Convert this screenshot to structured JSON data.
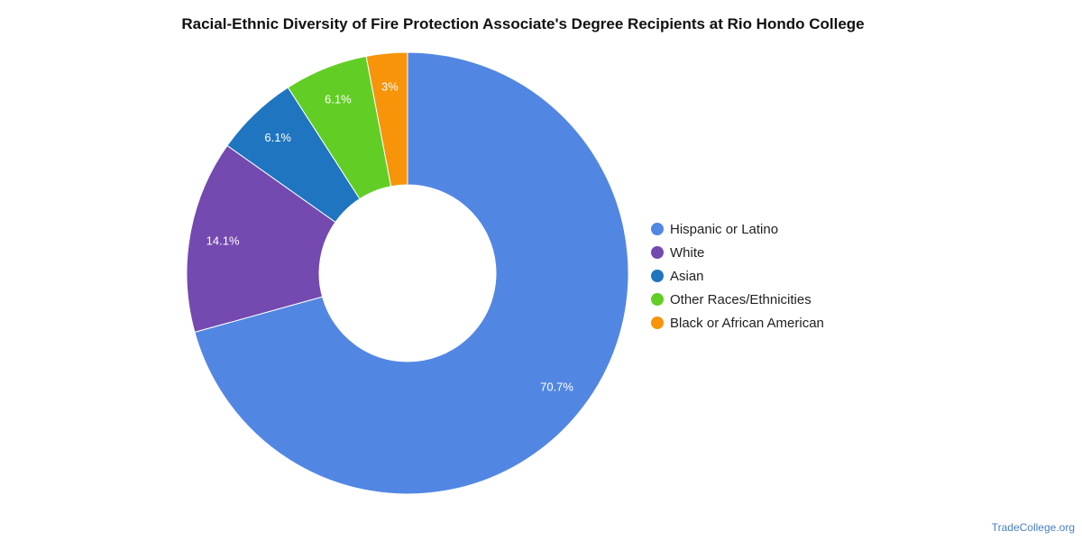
{
  "chart_data": {
    "type": "pie",
    "donut": true,
    "title": "Racial-Ethnic Diversity of Fire Protection Associate's Degree Recipients at Rio Hondo College",
    "legend_position": "right",
    "slices": [
      {
        "name": "Hispanic or Latino",
        "value": 70.7,
        "label": "70.7%",
        "color": "#5286e3"
      },
      {
        "name": "White",
        "value": 14.1,
        "label": "14.1%",
        "color": "#7449b0"
      },
      {
        "name": "Asian",
        "value": 6.1,
        "label": "6.1%",
        "color": "#1f75bf"
      },
      {
        "name": "Other Races/Ethnicities",
        "value": 6.1,
        "label": "6.1%",
        "color": "#62ce25"
      },
      {
        "name": "Black or African American",
        "value": 3.0,
        "label": "3%",
        "color": "#f7940a"
      }
    ]
  },
  "watermark": "TradeCollege.org"
}
